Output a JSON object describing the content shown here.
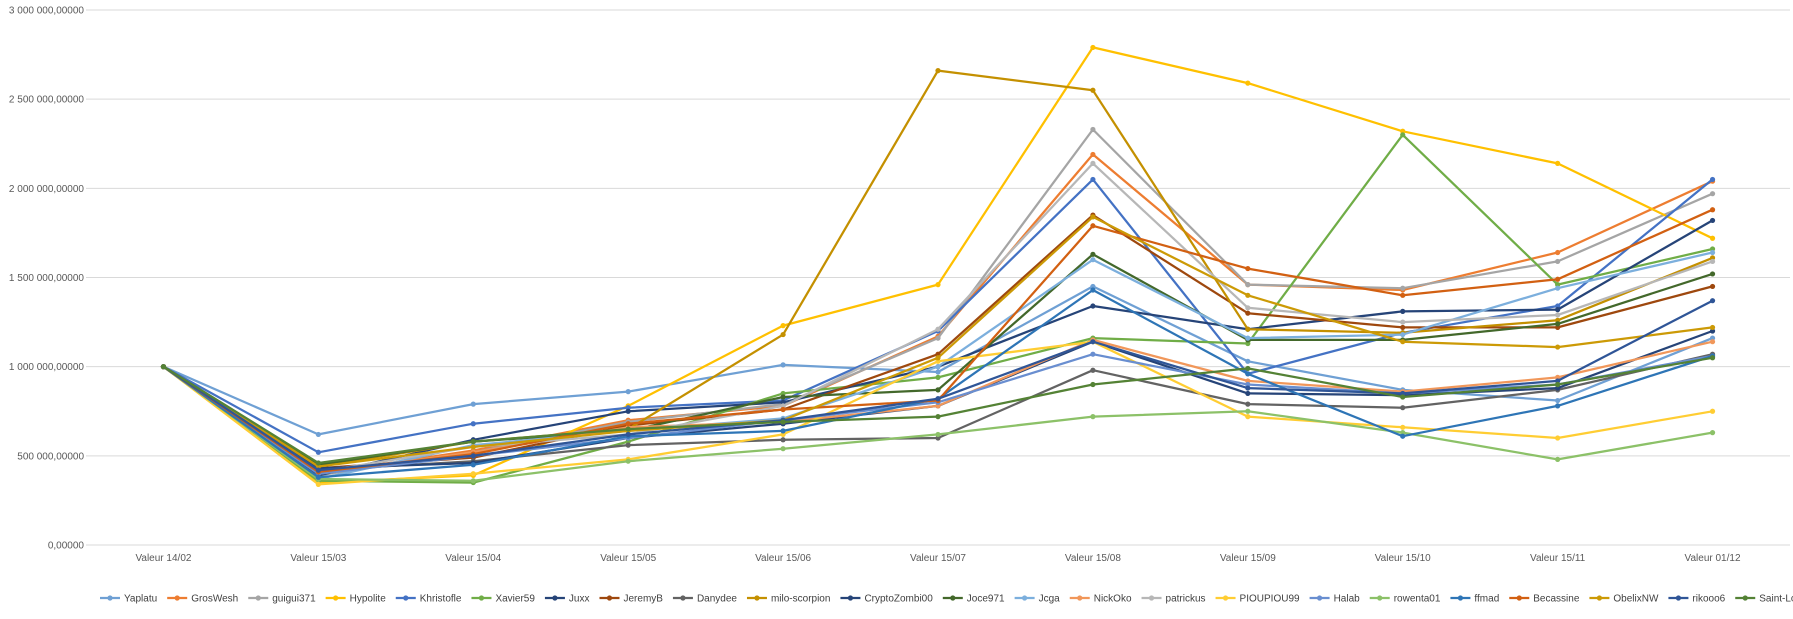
{
  "chart_data": {
    "type": "line",
    "title": "",
    "xlabel": "",
    "ylabel": "",
    "ylim": [
      0,
      3000000
    ],
    "ytick_step": 500000,
    "y_tick_labels": [
      "0,00000",
      "500 000,00000",
      "1 000 000,00000",
      "1 500 000,00000",
      "2 000 000,00000",
      "2 500 000,00000",
      "3 000 000,00000"
    ],
    "grid": true,
    "legend_position": "bottom",
    "categories": [
      "Valeur 14/02",
      "Valeur 15/03",
      "Valeur 15/04",
      "Valeur 15/05",
      "Valeur 15/06",
      "Valeur 15/07",
      "Valeur 15/08",
      "Valeur 15/09",
      "Valeur 15/10",
      "Valeur 15/11",
      "Valeur 01/12"
    ],
    "series": [
      {
        "name": "Yaplatu",
        "color": "#6fa0d4",
        "values": [
          1000000,
          620000,
          790000,
          860000,
          1010000,
          970000,
          1450000,
          1030000,
          870000,
          810000,
          1160000
        ]
      },
      {
        "name": "GrosWesh",
        "color": "#ed7d31",
        "values": [
          1000000,
          400000,
          530000,
          700000,
          780000,
          1170000,
          2190000,
          1460000,
          1430000,
          1640000,
          2040000
        ]
      },
      {
        "name": "guigui371",
        "color": "#a5a5a5",
        "values": [
          1000000,
          390000,
          520000,
          690000,
          790000,
          1160000,
          2330000,
          1460000,
          1440000,
          1590000,
          1970000
        ]
      },
      {
        "name": "Hypolite",
        "color": "#ffc000",
        "values": [
          1000000,
          350000,
          390000,
          780000,
          1230000,
          1460000,
          2790000,
          2590000,
          2320000,
          2140000,
          1720000
        ]
      },
      {
        "name": "Khristofle",
        "color": "#4472c4",
        "values": [
          1000000,
          520000,
          680000,
          770000,
          810000,
          1200000,
          2050000,
          960000,
          1190000,
          1340000,
          2050000
        ]
      },
      {
        "name": "Xavier59",
        "color": "#70ad47",
        "values": [
          1000000,
          360000,
          350000,
          580000,
          850000,
          940000,
          1160000,
          1130000,
          2300000,
          1460000,
          1660000
        ]
      },
      {
        "name": "Juxx",
        "color": "#264478",
        "values": [
          1000000,
          390000,
          590000,
          750000,
          800000,
          1000000,
          1340000,
          1210000,
          1310000,
          1320000,
          1820000
        ]
      },
      {
        "name": "JeremyB",
        "color": "#9e480e",
        "values": [
          1000000,
          430000,
          490000,
          670000,
          760000,
          1070000,
          1850000,
          1300000,
          1220000,
          1220000,
          1450000
        ]
      },
      {
        "name": "Danydee",
        "color": "#636363",
        "values": [
          1000000,
          420000,
          470000,
          560000,
          590000,
          600000,
          980000,
          790000,
          770000,
          870000,
          1070000
        ]
      },
      {
        "name": "milo-scorpion",
        "color": "#c49000",
        "values": [
          1000000,
          440000,
          580000,
          650000,
          1180000,
          2660000,
          2550000,
          1210000,
          1190000,
          1260000,
          1610000
        ]
      },
      {
        "name": "CryptoZombi00",
        "color": "#264478",
        "values": [
          1000000,
          430000,
          460000,
          600000,
          680000,
          780000,
          1140000,
          850000,
          840000,
          880000,
          1200000
        ]
      },
      {
        "name": "Joce971",
        "color": "#43682b",
        "values": [
          1000000,
          450000,
          580000,
          640000,
          830000,
          870000,
          1630000,
          1150000,
          1150000,
          1240000,
          1520000
        ]
      },
      {
        "name": "Jcga",
        "color": "#7cafdd",
        "values": [
          1000000,
          370000,
          560000,
          640000,
          710000,
          1000000,
          1600000,
          1160000,
          1180000,
          1440000,
          1640000
        ]
      },
      {
        "name": "NickOko",
        "color": "#f1975a",
        "values": [
          1000000,
          400000,
          520000,
          660000,
          690000,
          780000,
          1150000,
          920000,
          860000,
          940000,
          1140000
        ]
      },
      {
        "name": "patrickus",
        "color": "#b7b7b7",
        "values": [
          1000000,
          410000,
          550000,
          620000,
          780000,
          1210000,
          2140000,
          1330000,
          1250000,
          1290000,
          1590000
        ]
      },
      {
        "name": "PIOUPIOU99",
        "color": "#ffcd33",
        "values": [
          1000000,
          340000,
          400000,
          480000,
          620000,
          1030000,
          1140000,
          720000,
          660000,
          600000,
          750000
        ]
      },
      {
        "name": "Halab",
        "color": "#698ed0",
        "values": [
          1000000,
          400000,
          500000,
          600000,
          700000,
          800000,
          1070000,
          900000,
          850000,
          900000,
          1060000
        ]
      },
      {
        "name": "rowenta01",
        "color": "#8cc168",
        "values": [
          1000000,
          370000,
          360000,
          470000,
          540000,
          620000,
          720000,
          750000,
          630000,
          480000,
          630000
        ]
      },
      {
        "name": "ffmad",
        "color": "#2e75b6",
        "values": [
          1000000,
          380000,
          450000,
          610000,
          640000,
          820000,
          1430000,
          960000,
          610000,
          780000,
          1060000
        ]
      },
      {
        "name": "Becassine",
        "color": "#d26012",
        "values": [
          1000000,
          410000,
          510000,
          680000,
          760000,
          810000,
          1790000,
          1550000,
          1400000,
          1490000,
          1880000
        ]
      },
      {
        "name": "ObelixNW",
        "color": "#cc9a06",
        "values": [
          1000000,
          440000,
          550000,
          640000,
          700000,
          1050000,
          1840000,
          1400000,
          1140000,
          1110000,
          1220000
        ]
      },
      {
        "name": "rikooo6",
        "color": "#2f5597",
        "values": [
          1000000,
          420000,
          500000,
          620000,
          700000,
          820000,
          1140000,
          880000,
          850000,
          920000,
          1370000
        ]
      },
      {
        "name": "Saint-Loup",
        "color": "#548235",
        "values": [
          1000000,
          460000,
          580000,
          650000,
          690000,
          720000,
          900000,
          990000,
          830000,
          900000,
          1050000
        ]
      }
    ]
  }
}
